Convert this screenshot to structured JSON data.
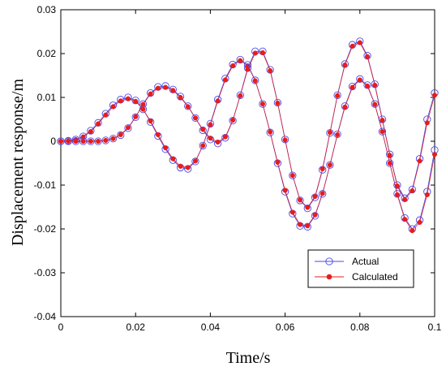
{
  "chart_data": {
    "type": "line",
    "title": "",
    "xlabel": "Time/s",
    "ylabel": "Displacement response/m",
    "xlim": [
      0,
      0.1
    ],
    "ylim": [
      -0.04,
      0.03
    ],
    "grid": false,
    "legend_position": "bottom-right",
    "x_ticks": [
      0,
      0.02,
      0.04,
      0.06,
      0.08,
      0.1
    ],
    "x_tick_labels": [
      "0",
      "0.02",
      "0.04",
      "0.06",
      "0.08",
      "0.1"
    ],
    "y_ticks": [
      -0.04,
      -0.03,
      -0.02,
      -0.01,
      0,
      0.01,
      0.02,
      0.03
    ],
    "y_tick_labels": [
      "-0.04",
      "-0.03",
      "-0.02",
      "-0.01",
      "0",
      "0.01",
      "0.02",
      "0.03"
    ],
    "legend": [
      "Actual",
      "Calculated"
    ],
    "styles": {
      "Actual": {
        "color": "#4a4ae6",
        "marker": "open-circle"
      },
      "Calculated": {
        "color": "#e81c1c",
        "marker": "filled-dot"
      }
    },
    "note": "Two response curves (A and B) are each plotted as both Actual and Calculated; the series overlap closely.",
    "x": [
      0,
      0.002,
      0.004,
      0.006,
      0.008,
      0.01,
      0.012,
      0.014,
      0.016,
      0.018,
      0.02,
      0.022,
      0.024,
      0.026,
      0.028,
      0.03,
      0.032,
      0.034,
      0.036,
      0.038,
      0.04,
      0.042,
      0.044,
      0.046,
      0.048,
      0.05,
      0.052,
      0.054,
      0.056,
      0.058,
      0.06,
      0.062,
      0.064,
      0.066,
      0.068,
      0.07,
      0.072,
      0.074,
      0.076,
      0.078,
      0.08,
      0.082,
      0.084,
      0.086,
      0.088,
      0.09,
      0.092,
      0.094,
      0.096,
      0.098,
      0.1
    ],
    "series": [
      {
        "name": "Actual",
        "curve": "A",
        "values": [
          0,
          0.0001,
          0.0004,
          0.0011,
          0.0024,
          0.0042,
          0.0063,
          0.0082,
          0.0095,
          0.01,
          0.0093,
          0.0073,
          0.0044,
          0.0012,
          -0.0018,
          -0.0043,
          -0.006,
          -0.0063,
          -0.0046,
          -0.001,
          0.004,
          0.0095,
          0.0143,
          0.0175,
          0.0186,
          0.0174,
          0.0139,
          0.0085,
          0.002,
          -0.005,
          -0.0115,
          -0.0165,
          -0.0193,
          -0.0195,
          -0.017,
          -0.012,
          -0.0054,
          0.0016,
          0.008,
          0.0125,
          0.0142,
          0.0128,
          0.0085,
          0.0022,
          -0.005,
          -0.012,
          -0.0175,
          -0.02,
          -0.018,
          -0.0115,
          -0.002
        ]
      },
      {
        "name": "Calculated",
        "curve": "A",
        "values": [
          0,
          0.0001,
          0.0004,
          0.001,
          0.0022,
          0.004,
          0.006,
          0.0079,
          0.0092,
          0.0097,
          0.0091,
          0.0073,
          0.0046,
          0.0015,
          -0.0015,
          -0.004,
          -0.0057,
          -0.006,
          -0.0045,
          -0.001,
          0.0038,
          0.0092,
          0.014,
          0.0172,
          0.0184,
          0.0172,
          0.0138,
          0.0085,
          0.0021,
          -0.0048,
          -0.0112,
          -0.0162,
          -0.019,
          -0.0193,
          -0.0168,
          -0.0119,
          -0.0054,
          0.0015,
          0.0078,
          0.0123,
          0.014,
          0.0126,
          0.0084,
          0.0022,
          -0.005,
          -0.0122,
          -0.0178,
          -0.0204,
          -0.0185,
          -0.0122,
          -0.003
        ]
      },
      {
        "name": "Actual",
        "curve": "B",
        "values": [
          0,
          0,
          0,
          0,
          0,
          0,
          0.0002,
          0.0006,
          0.0014,
          0.003,
          0.0055,
          0.0085,
          0.011,
          0.0124,
          0.0126,
          0.0118,
          0.0102,
          0.008,
          0.0053,
          0.0025,
          0.0004,
          -0.0005,
          0.0008,
          0.0047,
          0.0105,
          0.0167,
          0.0205,
          0.0205,
          0.0163,
          0.0088,
          0.0004,
          -0.0078,
          -0.0135,
          -0.0153,
          -0.0128,
          -0.0065,
          0.0019,
          0.0105,
          0.0176,
          0.022,
          0.0228,
          0.0195,
          0.013,
          0.005,
          -0.003,
          -0.01,
          -0.013,
          -0.011,
          -0.004,
          0.005,
          0.011
        ]
      },
      {
        "name": "Calculated",
        "curve": "B",
        "values": [
          0,
          0,
          0,
          0,
          0,
          0,
          0.0002,
          0.0006,
          0.0015,
          0.0031,
          0.0056,
          0.0084,
          0.0108,
          0.0121,
          0.0123,
          0.0116,
          0.01,
          0.0079,
          0.0053,
          0.0027,
          0.0007,
          -0.0002,
          0.001,
          0.0048,
          0.0104,
          0.0164,
          0.0201,
          0.0202,
          0.0161,
          0.0087,
          0.0003,
          -0.0078,
          -0.0134,
          -0.0151,
          -0.0126,
          -0.0063,
          0.002,
          0.0104,
          0.0174,
          0.0217,
          0.0225,
          0.0193,
          0.0128,
          0.0048,
          -0.0032,
          -0.0102,
          -0.0133,
          -0.0113,
          -0.0045,
          0.0042,
          0.0105
        ]
      }
    ]
  }
}
